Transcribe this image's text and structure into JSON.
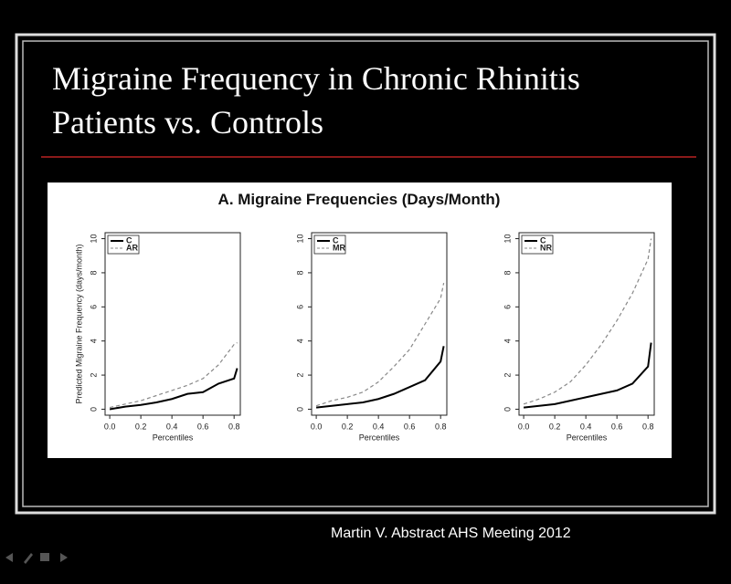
{
  "slide": {
    "title_lines": [
      "Migraine Frequency in Chronic Rhinitis",
      "Patients vs. Controls"
    ],
    "figure_title": "A. Migraine Frequencies (Days/Month)",
    "footer": "Martin V. Abstract AHS Meeting 2012"
  },
  "chart_data": [
    {
      "type": "line",
      "ylabel": "Predicted Migraine Frequency (days/month)",
      "xlabel": "Percentiles",
      "x": [
        0,
        0.1,
        0.2,
        0.3,
        0.4,
        0.5,
        0.6,
        0.7,
        0.8,
        0.82
      ],
      "series": [
        {
          "name": "C",
          "color": "#000000",
          "linestyle": "solid",
          "values": [
            0,
            0.15,
            0.25,
            0.4,
            0.6,
            0.9,
            1.0,
            1.5,
            1.8,
            2.4
          ]
        },
        {
          "name": "AR",
          "color": "#888888",
          "linestyle": "dashed",
          "values": [
            0.1,
            0.3,
            0.5,
            0.8,
            1.1,
            1.4,
            1.8,
            2.6,
            3.8,
            3.9
          ]
        }
      ],
      "xlim": [
        -0.03,
        0.84
      ],
      "xticks": [
        {
          "value": 0,
          "label": "0.0"
        },
        0.2,
        0.4,
        0.6,
        0.8
      ],
      "ylim": [
        -0.35,
        10.35
      ],
      "yticks": [
        0,
        2,
        4,
        6,
        8,
        10
      ],
      "legend": "upper left"
    },
    {
      "type": "line",
      "xlabel": "Percentiles",
      "x": [
        0,
        0.1,
        0.2,
        0.3,
        0.4,
        0.5,
        0.6,
        0.7,
        0.8,
        0.82
      ],
      "series": [
        {
          "name": "C",
          "color": "#000000",
          "linestyle": "solid",
          "values": [
            0.1,
            0.2,
            0.3,
            0.4,
            0.6,
            0.9,
            1.3,
            1.7,
            2.8,
            3.7
          ]
        },
        {
          "name": "MR",
          "color": "#888888",
          "linestyle": "dashed",
          "values": [
            0.2,
            0.5,
            0.7,
            1.0,
            1.6,
            2.5,
            3.5,
            5.0,
            6.5,
            7.4
          ]
        }
      ],
      "xlim": [
        -0.03,
        0.84
      ],
      "xticks": [
        {
          "value": 0,
          "label": "0.0"
        },
        0.2,
        0.4,
        0.6,
        0.8
      ],
      "ylim": [
        -0.35,
        10.35
      ],
      "yticks": [
        0,
        2,
        4,
        6,
        8,
        10
      ],
      "legend": "upper left"
    },
    {
      "type": "line",
      "xlabel": "Percentiles",
      "x": [
        0,
        0.1,
        0.2,
        0.3,
        0.4,
        0.5,
        0.6,
        0.7,
        0.8,
        0.82
      ],
      "series": [
        {
          "name": "C",
          "color": "#000000",
          "linestyle": "solid",
          "values": [
            0.1,
            0.2,
            0.3,
            0.5,
            0.7,
            0.9,
            1.1,
            1.5,
            2.5,
            3.9
          ]
        },
        {
          "name": "NR",
          "color": "#888888",
          "linestyle": "dashed",
          "values": [
            0.3,
            0.6,
            1.0,
            1.6,
            2.6,
            3.8,
            5.2,
            6.8,
            8.8,
            10
          ]
        }
      ],
      "xlim": [
        -0.03,
        0.84
      ],
      "xticks": [
        {
          "value": 0,
          "label": "0.0"
        },
        0.2,
        0.4,
        0.6,
        0.8
      ],
      "ylim": [
        -0.35,
        10.35
      ],
      "yticks": [
        0,
        2,
        4,
        6,
        8,
        10
      ],
      "legend": "upper left"
    }
  ]
}
